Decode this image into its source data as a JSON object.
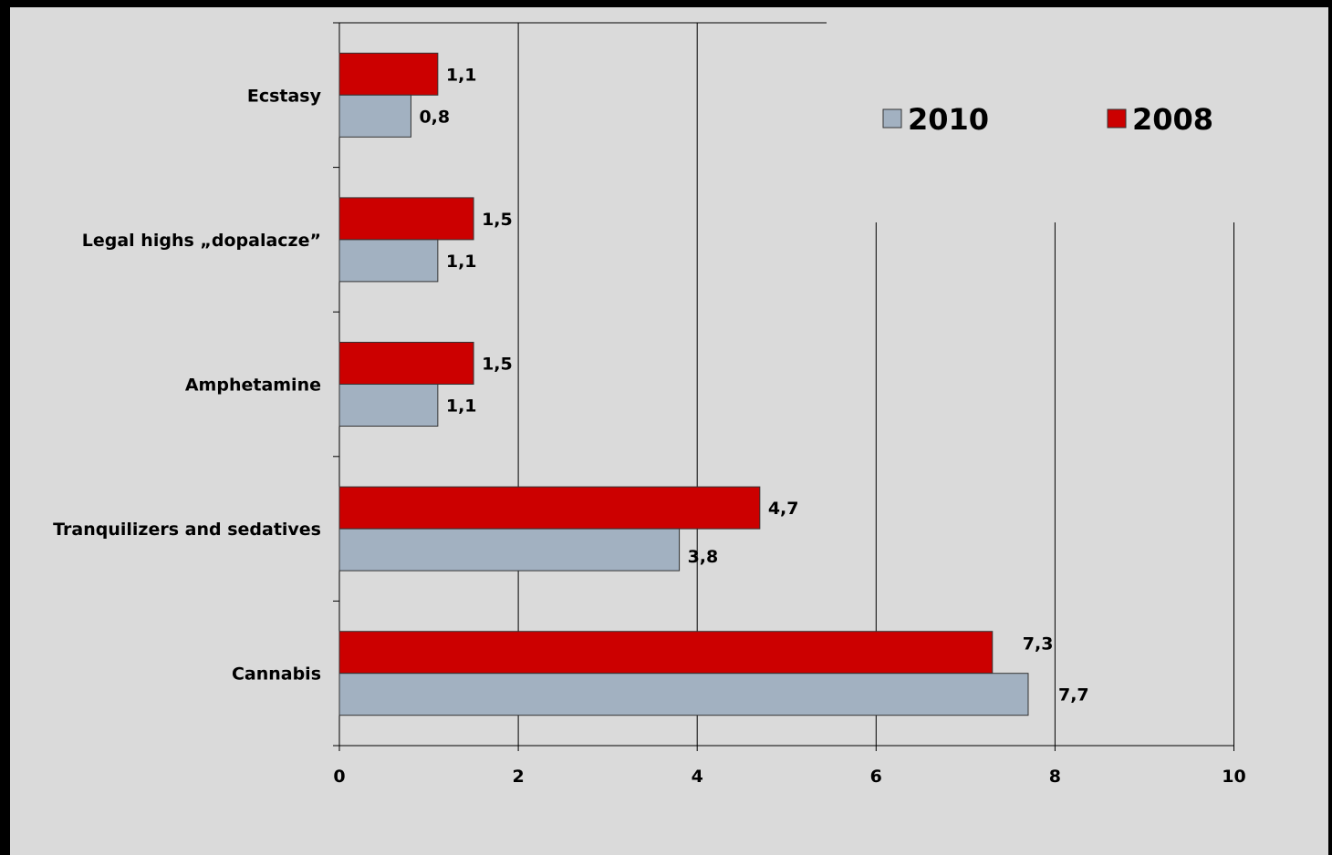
{
  "chart_data": {
    "type": "bar",
    "orientation": "horizontal",
    "categories": [
      "Ecstasy",
      "Legal highs „dopalacze”",
      "Amphetamine",
      "Tranquilizers and sedatives",
      "Cannabis"
    ],
    "series": [
      {
        "name": "2008",
        "color": "#cc0000",
        "values": [
          1.1,
          1.5,
          1.5,
          4.7,
          7.3
        ],
        "labels": [
          "1,1",
          "1,5",
          "1,5",
          "4,7",
          "7,3"
        ]
      },
      {
        "name": "2010",
        "color": "#a2b1c1",
        "values": [
          0.8,
          1.1,
          1.1,
          3.8,
          7.7
        ],
        "labels": [
          "0,8",
          "1,1",
          "1,1",
          "3,8",
          "7,7"
        ]
      }
    ],
    "xlim": [
      0,
      10
    ],
    "xticks": [
      "0",
      "2",
      "4",
      "6",
      "8",
      "10"
    ],
    "grid": "vertical",
    "legend": {
      "position": "top-right",
      "entries": [
        {
          "name": "2010",
          "color": "#a2b1c1"
        },
        {
          "name": "2008",
          "color": "#cc0000"
        }
      ]
    },
    "title": "",
    "xlabel": "",
    "ylabel": ""
  }
}
